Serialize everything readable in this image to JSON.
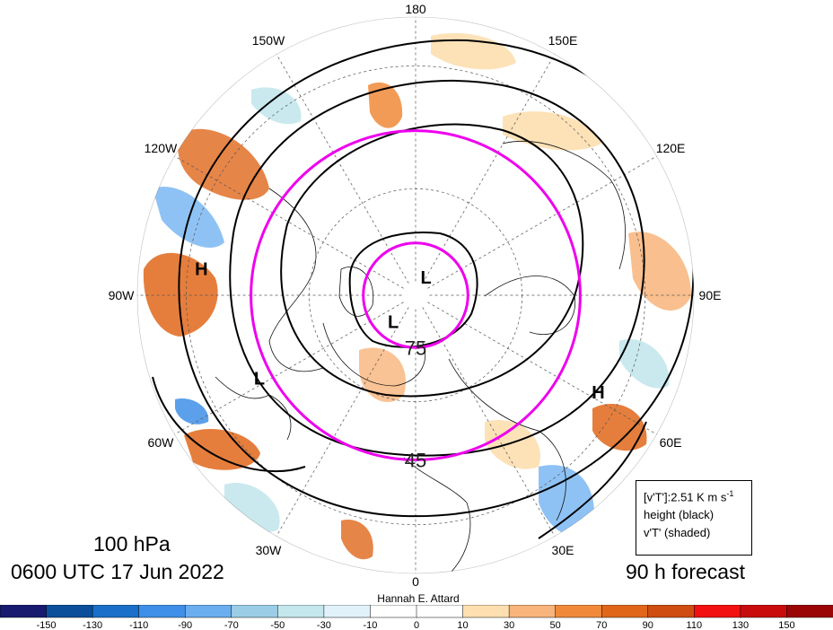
{
  "map": {
    "projection": "north-polar-stereographic",
    "longitude_labels": [
      {
        "text": "180",
        "lon": 180
      },
      {
        "text": "150E",
        "lon": 150
      },
      {
        "text": "120E",
        "lon": 120
      },
      {
        "text": "90E",
        "lon": 90
      },
      {
        "text": "60E",
        "lon": 60
      },
      {
        "text": "30E",
        "lon": 30
      },
      {
        "text": "0",
        "lon": 0
      },
      {
        "text": "30W",
        "lon": -30
      },
      {
        "text": "60W",
        "lon": -60
      },
      {
        "text": "90W",
        "lon": -90
      },
      {
        "text": "120W",
        "lon": -120
      },
      {
        "text": "150W",
        "lon": -150
      }
    ],
    "latitude_labels": [
      {
        "text": "75",
        "lat": 75
      },
      {
        "text": "45",
        "lat": 45
      }
    ],
    "highlighted_latitudes": [
      45,
      75
    ],
    "highlight_color": "#ee00ee",
    "pressure_centers": [
      {
        "text": "H",
        "lat": 33,
        "lon": -97
      },
      {
        "text": "L",
        "lat": 84,
        "lon": 150
      },
      {
        "text": "L",
        "lat": 80,
        "lon": -40
      },
      {
        "text": "L",
        "lat": 42,
        "lon": -62
      },
      {
        "text": "H",
        "lat": 35,
        "lon": 62
      }
    ]
  },
  "labels": {
    "level": "100 hPa",
    "valid_time": "0600 UTC 17 Jun 2022",
    "forecast": "90 h forecast",
    "author": "Hannah E. Attard"
  },
  "legend": {
    "line1": "[v'T']:2.51 K m s",
    "line1_sup": "-1",
    "line2": "height (black)",
    "line3": "v'T' (shaded)"
  },
  "colorbar": {
    "tick_labels": [
      "-150",
      "-130",
      "-110",
      "-90",
      "-70",
      "-50",
      "-30",
      "-10",
      "0",
      "10",
      "30",
      "50",
      "70",
      "90",
      "110",
      "130",
      "150"
    ],
    "colors": [
      "#171a6e",
      "#0b4f9a",
      "#1a70c8",
      "#3f8fe8",
      "#6aaef0",
      "#9bcde6",
      "#c3e7ed",
      "#e2f2fb",
      "#ffffff",
      "#ffffff",
      "#fddfb0",
      "#f8b47a",
      "#f08a3a",
      "#e0671a",
      "#cf4d10",
      "#f21010",
      "#c80c0c",
      "#9a0606"
    ]
  }
}
